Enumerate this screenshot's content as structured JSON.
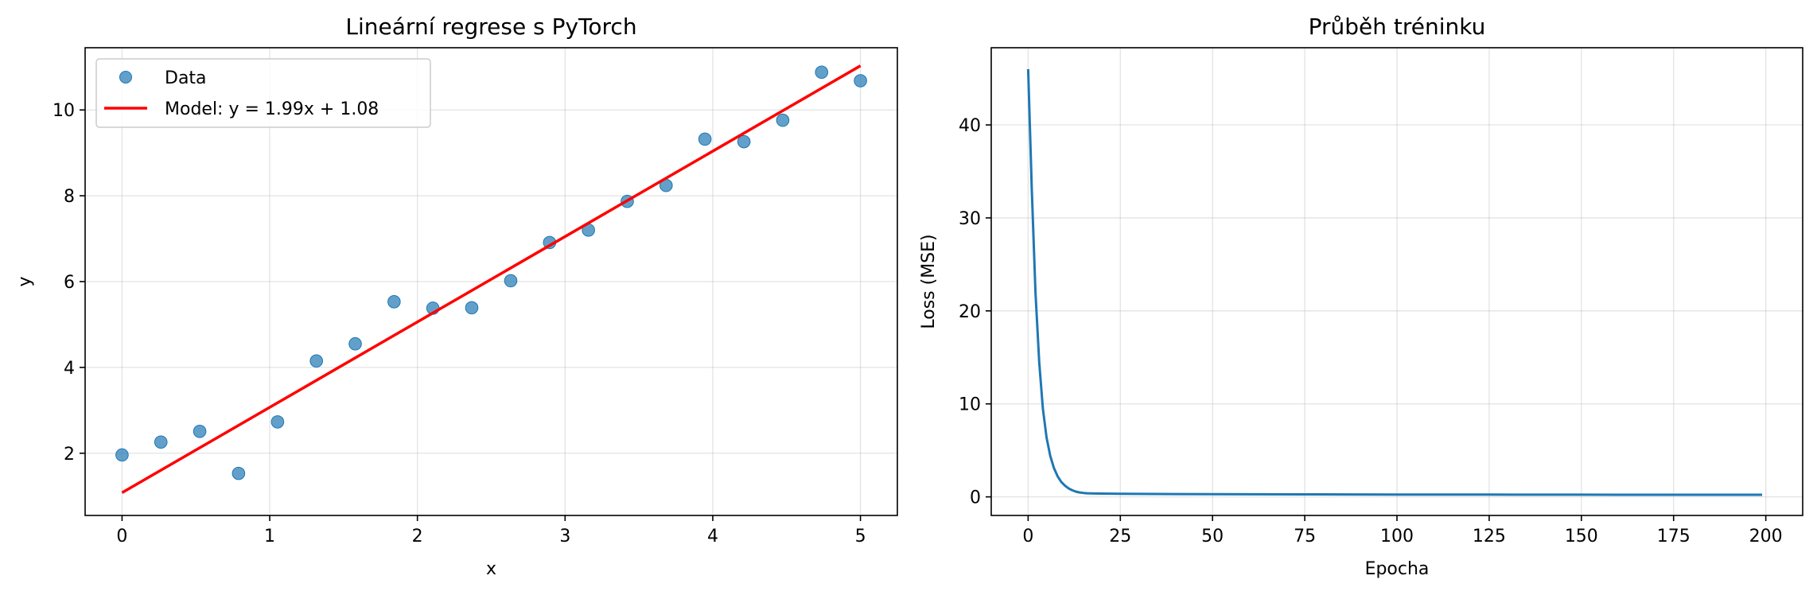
{
  "chart_data": [
    {
      "type": "scatter",
      "title": "Lineární regrese s PyTorch",
      "xlabel": "x",
      "ylabel": "y",
      "xlim": [
        -0.25,
        5.25
      ],
      "ylim": [
        0.55,
        11.45
      ],
      "xticks": [
        0,
        1,
        2,
        3,
        4,
        5
      ],
      "yticks": [
        2,
        4,
        6,
        8,
        10
      ],
      "grid": true,
      "legend_position": "top-left",
      "series": [
        {
          "name": "Data",
          "type": "scatter",
          "color": "#1f77b4",
          "x": [
            0.0,
            0.263,
            0.526,
            0.789,
            1.053,
            1.316,
            1.579,
            1.842,
            2.105,
            2.368,
            2.632,
            2.895,
            3.158,
            3.421,
            3.684,
            3.947,
            4.211,
            4.474,
            4.737,
            5.0
          ],
          "y": [
            1.96,
            2.26,
            2.51,
            1.53,
            2.73,
            4.15,
            4.55,
            5.53,
            5.38,
            5.39,
            6.02,
            6.91,
            7.2,
            7.87,
            8.24,
            9.32,
            9.26,
            9.76,
            10.88,
            10.68
          ]
        },
        {
          "name": "Model: y = 1.99x + 1.08",
          "type": "line",
          "color": "#ff0000",
          "x": [
            0,
            5
          ],
          "y": [
            1.08,
            11.03
          ]
        }
      ]
    },
    {
      "type": "line",
      "title": "Průběh tréninku",
      "xlabel": "Epocha",
      "ylabel": "Loss (MSE)",
      "xlim": [
        -10,
        210
      ],
      "ylim": [
        -2,
        48.3
      ],
      "xticks": [
        0,
        25,
        50,
        75,
        100,
        125,
        150,
        175,
        200
      ],
      "yticks": [
        0,
        10,
        20,
        30,
        40
      ],
      "grid": true,
      "series": [
        {
          "color": "#1f77b4",
          "x": [
            0,
            1,
            2,
            3,
            4,
            5,
            6,
            7,
            8,
            9,
            10,
            11,
            12,
            13,
            14,
            15,
            16,
            18,
            20,
            25,
            30,
            40,
            50,
            75,
            100,
            125,
            150,
            175,
            199
          ],
          "y": [
            46.0,
            33.0,
            22.0,
            14.5,
            9.5,
            6.4,
            4.4,
            3.1,
            2.2,
            1.6,
            1.2,
            0.9,
            0.7,
            0.56,
            0.47,
            0.42,
            0.39,
            0.36,
            0.35,
            0.33,
            0.32,
            0.3,
            0.29,
            0.27,
            0.25,
            0.24,
            0.23,
            0.22,
            0.22
          ]
        }
      ]
    }
  ]
}
